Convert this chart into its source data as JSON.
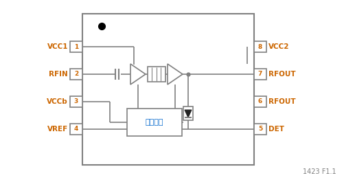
{
  "bg_color": "#ffffff",
  "gc": "#808080",
  "lc": "#cc6600",
  "rc": "#cc6600",
  "pc": "#cc6600",
  "tc": "#0066cc",
  "dot_color": "#000000",
  "diode_color": "#333333",
  "title": "1423 F1.1",
  "title_color": "#808080",
  "left_labels": [
    "VCC1",
    "RFIN",
    "VCCb",
    "VREF"
  ],
  "left_pins": [
    "1",
    "2",
    "3",
    "4"
  ],
  "right_labels": [
    "VCC2",
    "RFOUT",
    "RFOUT",
    "DET"
  ],
  "right_pins": [
    "8",
    "7",
    "6",
    "5"
  ],
  "bias_text": "偏置电路",
  "figsize": [
    5.02,
    2.62
  ],
  "dpi": 100
}
